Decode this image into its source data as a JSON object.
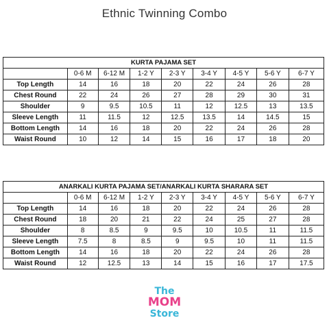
{
  "title": "Ethnic Twinning Combo",
  "brand": {
    "line1": "The",
    "line2": "MOM",
    "line3": "Store",
    "colors": {
      "primary": "#39b6d8",
      "accent": "#e9418a"
    }
  },
  "tables": [
    {
      "caption": "KURTA PAJAMA SET",
      "columns": [
        "0-6 M",
        "6-12 M",
        "1-2 Y",
        "2-3 Y",
        "3-4 Y",
        "4-5 Y",
        "5-6 Y",
        "6-7 Y"
      ],
      "rows": [
        {
          "label": "Top Length",
          "values": [
            "14",
            "16",
            "18",
            "20",
            "22",
            "24",
            "26",
            "28"
          ]
        },
        {
          "label": "Chest Round",
          "values": [
            "22",
            "24",
            "26",
            "27",
            "28",
            "29",
            "30",
            "31"
          ]
        },
        {
          "label": "Shoulder",
          "values": [
            "9",
            "9.5",
            "10.5",
            "11",
            "12",
            "12.5",
            "13",
            "13.5"
          ]
        },
        {
          "label": "Sleeve Length",
          "values": [
            "11",
            "11.5",
            "12",
            "12.5",
            "13.5",
            "14",
            "14.5",
            "15"
          ]
        },
        {
          "label": "Bottom Length",
          "values": [
            "14",
            "16",
            "18",
            "20",
            "22",
            "24",
            "26",
            "28"
          ]
        },
        {
          "label": "Waist Round",
          "values": [
            "10",
            "12",
            "14",
            "15",
            "16",
            "17",
            "18",
            "20"
          ]
        }
      ]
    },
    {
      "caption": "ANARKALI KURTA PAJAMA SET/ANARKALI KURTA SHARARA SET",
      "columns": [
        "0-6 M",
        "6-12 M",
        "1-2 Y",
        "2-3 Y",
        "3-4 Y",
        "4-5 Y",
        "5-6 Y",
        "6-7 Y"
      ],
      "rows": [
        {
          "label": "Top Length",
          "values": [
            "14",
            "16",
            "18",
            "20",
            "22",
            "24",
            "26",
            "28"
          ]
        },
        {
          "label": "Chest Round",
          "values": [
            "18",
            "20",
            "21",
            "22",
            "24",
            "25",
            "27",
            "28"
          ]
        },
        {
          "label": "Shoulder",
          "values": [
            "8",
            "8.5",
            "9",
            "9.5",
            "10",
            "10.5",
            "11",
            "11.5"
          ]
        },
        {
          "label": "Sleeve Length",
          "values": [
            "7.5",
            "8",
            "8.5",
            "9",
            "9.5",
            "10",
            "11",
            "11.5"
          ]
        },
        {
          "label": "Bottom Length",
          "values": [
            "14",
            "16",
            "18",
            "20",
            "22",
            "24",
            "26",
            "28"
          ]
        },
        {
          "label": "Waist Round",
          "values": [
            "12",
            "12.5",
            "13",
            "14",
            "15",
            "16",
            "17",
            "17.5"
          ]
        }
      ]
    }
  ]
}
